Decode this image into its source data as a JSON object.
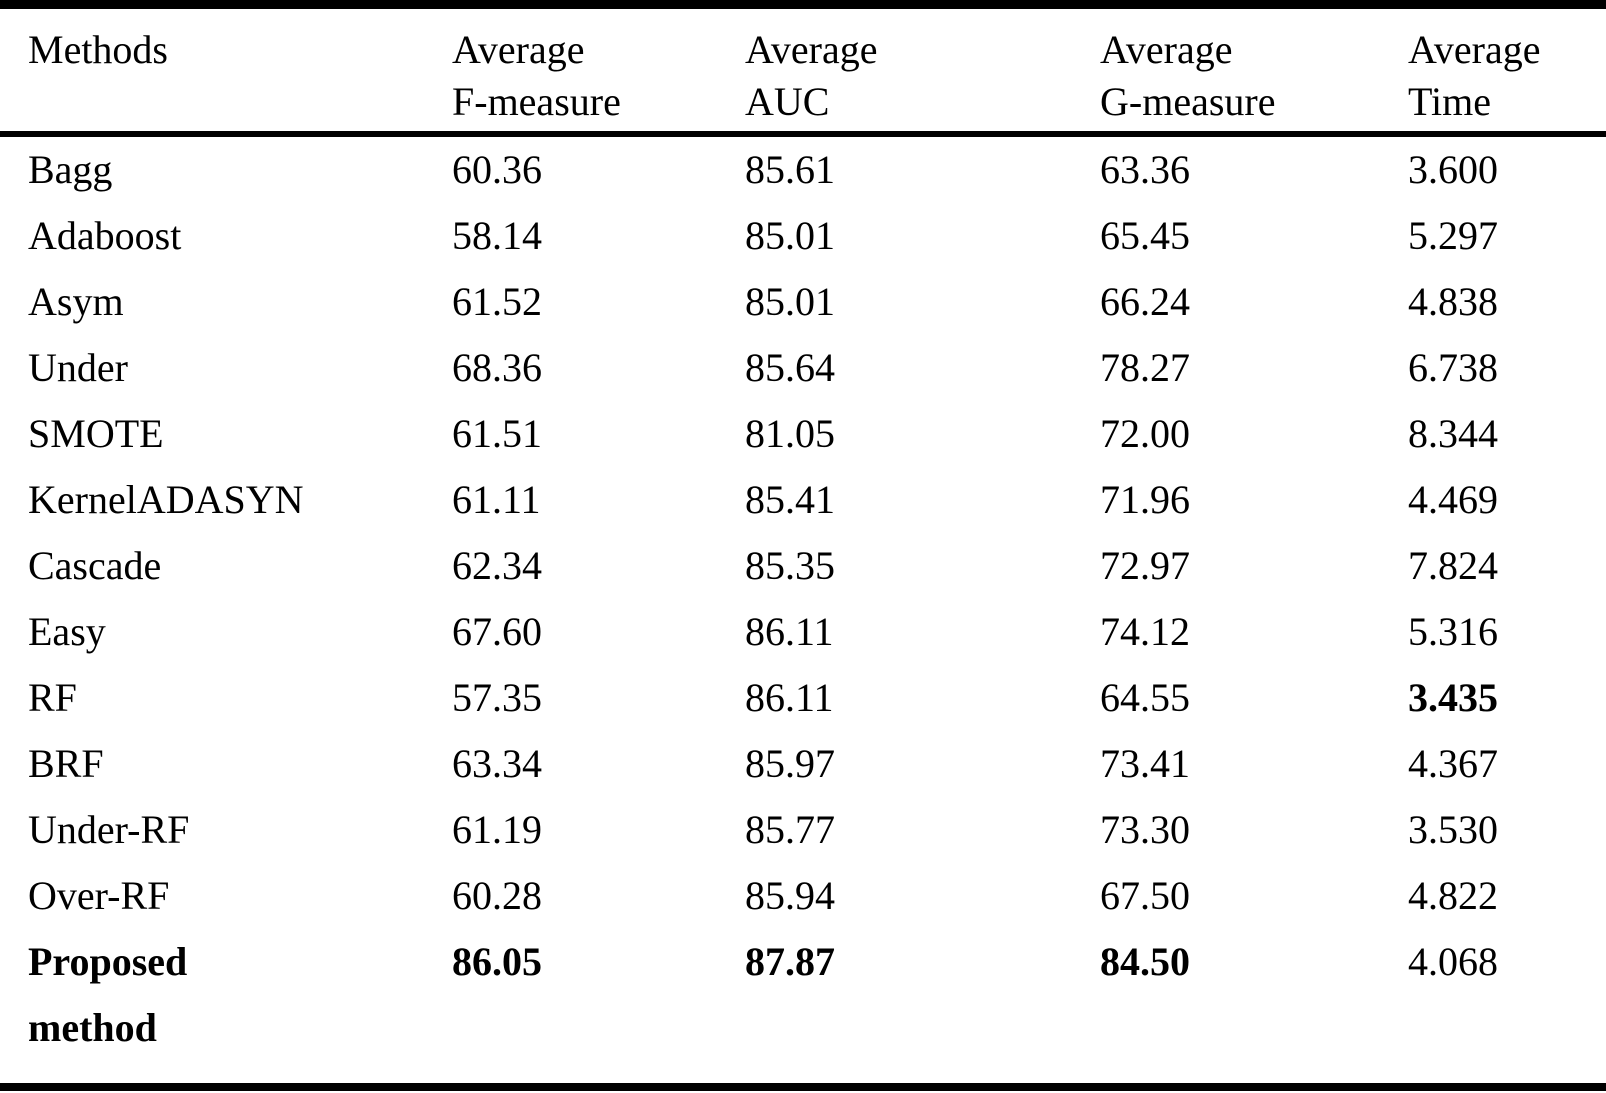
{
  "table": {
    "columns": [
      {
        "label": "Methods"
      },
      {
        "label": "Average\nF-measure"
      },
      {
        "label": "Average\nAUC"
      },
      {
        "label": "Average\nG-measure"
      },
      {
        "label": "Average\nTime"
      }
    ],
    "rows": [
      {
        "method": "Bagg",
        "f": "60.36",
        "auc": "85.61",
        "g": "63.36",
        "time": "3.600"
      },
      {
        "method": "Adaboost",
        "f": "58.14",
        "auc": "85.01",
        "g": "65.45",
        "time": "5.297"
      },
      {
        "method": "Asym",
        "f": "61.52",
        "auc": "85.01",
        "g": "66.24",
        "time": "4.838"
      },
      {
        "method": "Under",
        "f": "68.36",
        "auc": "85.64",
        "g": "78.27",
        "time": "6.738"
      },
      {
        "method": "SMOTE",
        "f": "61.51",
        "auc": "81.05",
        "g": "72.00",
        "time": "8.344"
      },
      {
        "method": "KernelADASYN",
        "f": "61.11",
        "auc": "85.41",
        "g": "71.96",
        "time": "4.469"
      },
      {
        "method": "Cascade",
        "f": "62.34",
        "auc": "85.35",
        "g": "72.97",
        "time": "7.824"
      },
      {
        "method": "Easy",
        "f": "67.60",
        "auc": "86.11",
        "g": "74.12",
        "time": "5.316"
      },
      {
        "method": "RF",
        "f": "57.35",
        "auc": "86.11",
        "g": "64.55",
        "time": "3.435"
      },
      {
        "method": "BRF",
        "f": "63.34",
        "auc": "85.97",
        "g": "73.41",
        "time": "4.367"
      },
      {
        "method": "Under-RF",
        "f": "61.19",
        "auc": "85.77",
        "g": "73.30",
        "time": "3.530"
      },
      {
        "method": "Over-RF",
        "f": "60.28",
        "auc": "85.94",
        "g": "67.50",
        "time": "4.822"
      },
      {
        "method": "Proposed\nmethod",
        "f": "86.05",
        "auc": "87.87",
        "g": "84.50",
        "time": "4.068"
      }
    ]
  }
}
